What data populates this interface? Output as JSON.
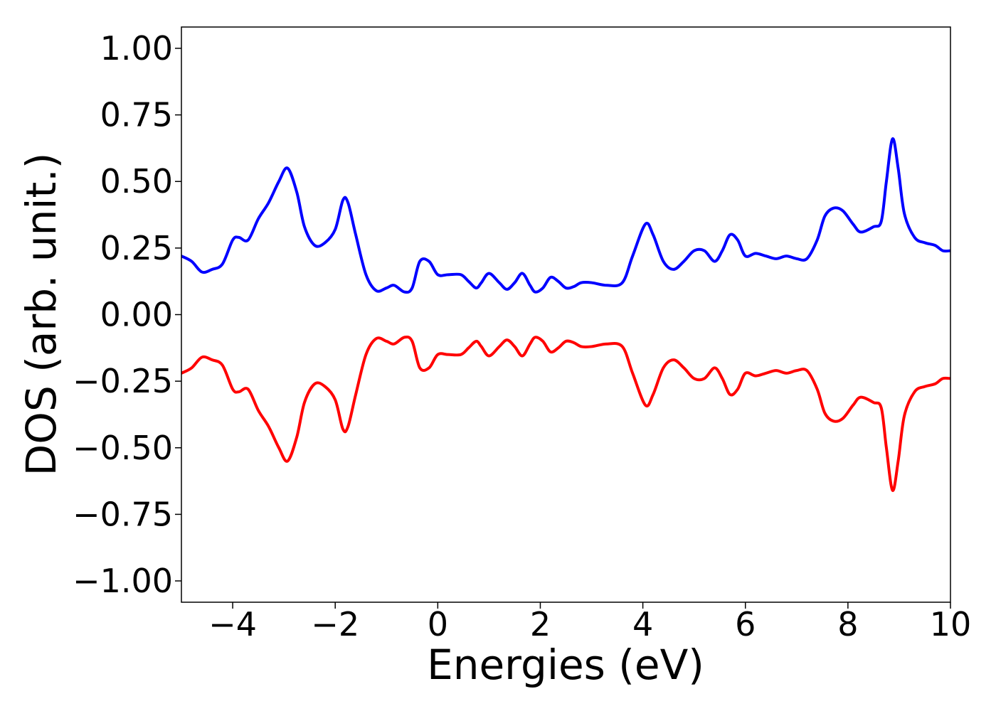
{
  "chart_data": {
    "type": "line",
    "xlabel": "Energies (eV)",
    "ylabel": "DOS (arb. unit.)",
    "xlim": [
      -5,
      10
    ],
    "ylim": [
      -1.08,
      1.08
    ],
    "xticks": [
      -4,
      -2,
      0,
      2,
      4,
      6,
      8,
      10
    ],
    "xtick_labels": [
      "−4",
      "−2",
      "0",
      "2",
      "4",
      "6",
      "8",
      "10"
    ],
    "yticks": [
      1.0,
      0.75,
      0.5,
      0.25,
      0.0,
      -0.25,
      -0.5,
      -0.75,
      -1.0
    ],
    "ytick_labels": [
      "1.00",
      "0.75",
      "0.50",
      "0.25",
      "0.00",
      "−0.25",
      "−0.50",
      "−0.75",
      "−1.00"
    ],
    "grid": false,
    "colors": {
      "up": "#0000ff",
      "down": "#ff0000"
    },
    "series": [
      {
        "color": "#0000ff",
        "x": [
          -5.0,
          -4.8,
          -4.6,
          -4.4,
          -4.2,
          -4.0,
          -3.88,
          -3.7,
          -3.5,
          -3.3,
          -3.1,
          -2.93,
          -2.75,
          -2.6,
          -2.4,
          -2.2,
          -2.0,
          -1.85,
          -1.75,
          -1.6,
          -1.4,
          -1.2,
          -1.0,
          -0.85,
          -0.65,
          -0.5,
          -0.35,
          -0.17,
          0.0,
          0.2,
          0.45,
          0.6,
          0.75,
          0.85,
          1.0,
          1.2,
          1.35,
          1.5,
          1.65,
          1.8,
          1.9,
          2.05,
          2.2,
          2.35,
          2.5,
          2.65,
          2.8,
          3.0,
          3.3,
          3.6,
          3.8,
          4.05,
          4.2,
          4.4,
          4.6,
          4.8,
          5.0,
          5.2,
          5.4,
          5.55,
          5.7,
          5.85,
          6.0,
          6.2,
          6.4,
          6.6,
          6.8,
          7.0,
          7.2,
          7.4,
          7.55,
          7.72,
          7.9,
          8.1,
          8.25,
          8.5,
          8.65,
          8.75,
          8.87,
          8.98,
          9.1,
          9.3,
          9.5,
          9.7,
          9.85,
          10.0
        ],
        "values": [
          0.22,
          0.2,
          0.16,
          0.17,
          0.19,
          0.28,
          0.29,
          0.28,
          0.36,
          0.42,
          0.5,
          0.55,
          0.46,
          0.33,
          0.26,
          0.27,
          0.32,
          0.43,
          0.42,
          0.3,
          0.15,
          0.09,
          0.1,
          0.11,
          0.085,
          0.1,
          0.2,
          0.2,
          0.15,
          0.15,
          0.15,
          0.125,
          0.1,
          0.12,
          0.155,
          0.12,
          0.095,
          0.12,
          0.155,
          0.11,
          0.085,
          0.1,
          0.14,
          0.125,
          0.1,
          0.105,
          0.12,
          0.12,
          0.11,
          0.12,
          0.22,
          0.34,
          0.3,
          0.2,
          0.17,
          0.2,
          0.24,
          0.24,
          0.2,
          0.24,
          0.3,
          0.28,
          0.22,
          0.23,
          0.22,
          0.21,
          0.22,
          0.21,
          0.21,
          0.28,
          0.37,
          0.4,
          0.39,
          0.34,
          0.31,
          0.33,
          0.35,
          0.5,
          0.66,
          0.55,
          0.38,
          0.29,
          0.27,
          0.26,
          0.24,
          0.24
        ]
      },
      {
        "color": "#ff0000",
        "x": [
          -5.0,
          -4.8,
          -4.6,
          -4.4,
          -4.2,
          -4.0,
          -3.88,
          -3.7,
          -3.5,
          -3.3,
          -3.1,
          -2.93,
          -2.75,
          -2.6,
          -2.4,
          -2.2,
          -2.0,
          -1.85,
          -1.75,
          -1.6,
          -1.4,
          -1.2,
          -1.0,
          -0.85,
          -0.65,
          -0.5,
          -0.35,
          -0.17,
          0.0,
          0.2,
          0.45,
          0.6,
          0.75,
          0.85,
          1.0,
          1.2,
          1.35,
          1.5,
          1.65,
          1.8,
          1.9,
          2.05,
          2.2,
          2.35,
          2.5,
          2.65,
          2.8,
          3.0,
          3.3,
          3.6,
          3.8,
          4.05,
          4.2,
          4.4,
          4.6,
          4.8,
          5.0,
          5.2,
          5.4,
          5.55,
          5.7,
          5.85,
          6.0,
          6.2,
          6.4,
          6.6,
          6.8,
          7.0,
          7.2,
          7.4,
          7.55,
          7.72,
          7.9,
          8.1,
          8.25,
          8.5,
          8.65,
          8.75,
          8.87,
          8.98,
          9.1,
          9.3,
          9.5,
          9.7,
          9.85,
          10.0
        ],
        "values": [
          -0.22,
          -0.2,
          -0.16,
          -0.17,
          -0.19,
          -0.28,
          -0.29,
          -0.28,
          -0.36,
          -0.42,
          -0.5,
          -0.55,
          -0.46,
          -0.33,
          -0.26,
          -0.27,
          -0.32,
          -0.43,
          -0.42,
          -0.3,
          -0.15,
          -0.09,
          -0.1,
          -0.11,
          -0.085,
          -0.1,
          -0.2,
          -0.2,
          -0.15,
          -0.15,
          -0.15,
          -0.125,
          -0.1,
          -0.12,
          -0.155,
          -0.12,
          -0.095,
          -0.12,
          -0.155,
          -0.11,
          -0.085,
          -0.1,
          -0.14,
          -0.125,
          -0.1,
          -0.105,
          -0.12,
          -0.12,
          -0.11,
          -0.12,
          -0.22,
          -0.34,
          -0.3,
          -0.2,
          -0.17,
          -0.2,
          -0.24,
          -0.24,
          -0.2,
          -0.24,
          -0.3,
          -0.28,
          -0.22,
          -0.23,
          -0.22,
          -0.21,
          -0.22,
          -0.21,
          -0.21,
          -0.28,
          -0.37,
          -0.4,
          -0.39,
          -0.34,
          -0.31,
          -0.33,
          -0.35,
          -0.5,
          -0.66,
          -0.55,
          -0.38,
          -0.29,
          -0.27,
          -0.26,
          -0.24,
          -0.24
        ]
      }
    ]
  }
}
